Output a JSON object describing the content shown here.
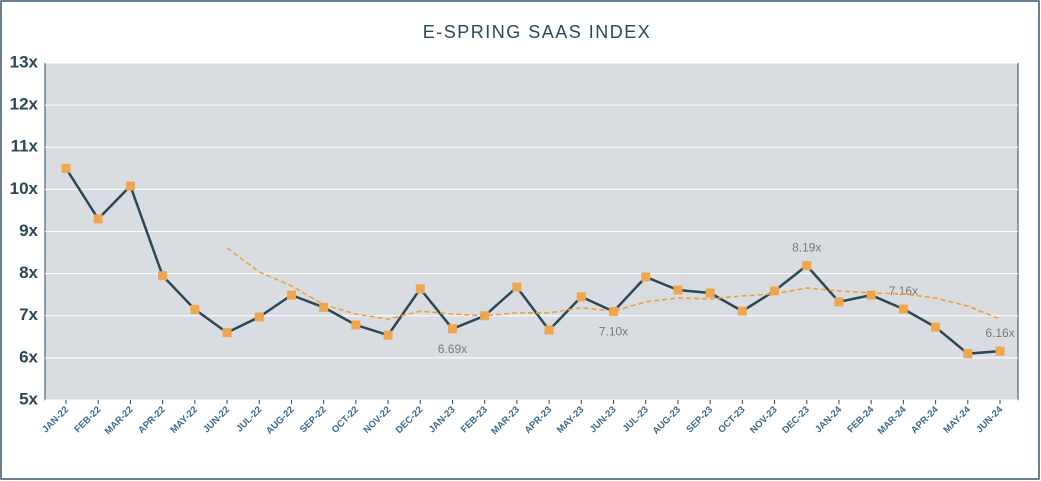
{
  "chart_data": {
    "type": "line",
    "title": "E-SPRING SAAS INDEX",
    "categories": [
      "JAN-22",
      "FEB-22",
      "MAR-22",
      "APR-22",
      "MAY-22",
      "JUN-22",
      "JUL-22",
      "AUG-22",
      "SEP-22",
      "OCT-22",
      "NOV-22",
      "DEC-22",
      "JAN-23",
      "FEB-23",
      "MAR-23",
      "APR-23",
      "MAY-23",
      "JUN-23",
      "JUL-23",
      "AUG-23",
      "SEP-23",
      "OCT-23",
      "NOV-23",
      "DEC-23",
      "JAN-24",
      "FEB-24",
      "MAR-24",
      "APR-24",
      "MAY-24",
      "JUN-24"
    ],
    "series": [
      {
        "color": "#2b4856",
        "marker_color": "#eea64f",
        "values": [
          10.5,
          9.3,
          10.08,
          7.95,
          7.15,
          6.6,
          6.97,
          7.49,
          7.2,
          6.78,
          6.54,
          7.64,
          6.69,
          7.0,
          7.68,
          6.66,
          7.45,
          7.1,
          7.92,
          7.61,
          7.54,
          7.11,
          7.59,
          8.19,
          7.33,
          7.49,
          7.16,
          6.73,
          6.1,
          6.16
        ],
        "value_labels": [
          null,
          null,
          null,
          null,
          null,
          null,
          null,
          null,
          null,
          null,
          null,
          null,
          "6.69x",
          null,
          null,
          null,
          null,
          "7.10x",
          null,
          null,
          null,
          null,
          null,
          "8.19x",
          null,
          null,
          "7.16x",
          null,
          null,
          "6.16x"
        ]
      },
      {
        "color": "#eea040",
        "dashed": true,
        "values": [
          null,
          null,
          null,
          null,
          null,
          8.61,
          8.04,
          7.71,
          7.26,
          7.04,
          6.92,
          7.11,
          7.04,
          7.0,
          7.07,
          7.07,
          7.19,
          7.11,
          7.33,
          7.42,
          7.4,
          7.47,
          7.52,
          7.66,
          7.59,
          7.54,
          7.52,
          7.42,
          7.23,
          6.92
        ]
      }
    ],
    "ylim": [
      5,
      13
    ],
    "yticks": [
      {
        "value": 5,
        "label": "5x"
      },
      {
        "value": 6,
        "label": "6x"
      },
      {
        "value": 7,
        "label": "7x"
      },
      {
        "value": 8,
        "label": "8x"
      },
      {
        "value": 9,
        "label": "9x"
      },
      {
        "value": 10,
        "label": "10x"
      },
      {
        "value": 11,
        "label": "11x"
      },
      {
        "value": 12,
        "label": "12x"
      },
      {
        "value": 13,
        "label": "13x"
      }
    ],
    "grid": true
  }
}
